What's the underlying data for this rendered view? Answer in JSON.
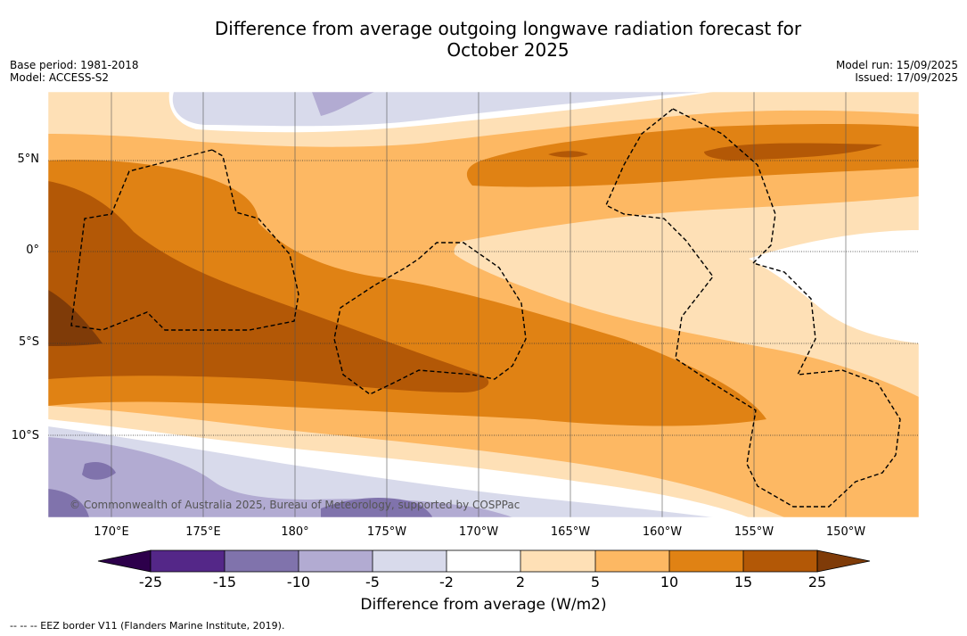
{
  "title_line1": "Difference from average outgoing longwave radiation forecast for",
  "title_line2": "October 2025",
  "meta_left": {
    "base_period": "Base period: 1981-2018",
    "model": "Model: ACCESS-S2"
  },
  "meta_right": {
    "model_run": "Model run: 15/09/2025",
    "issued": "Issued: 17/09/2025"
  },
  "latitude_labels": [
    "5°N",
    "0°",
    "5°S",
    "10°S"
  ],
  "longitude_labels": [
    "170°E",
    "175°E",
    "180°",
    "175°W",
    "170°W",
    "165°W",
    "160°W",
    "155°W",
    "150°W"
  ],
  "copyright": "© Commonwealth of Australia 2025, Bureau of Meteorology, supported by COSPPac",
  "colorbar": {
    "ticks": [
      "-25",
      "-15",
      "-10",
      "-5",
      "-2",
      "2",
      "5",
      "10",
      "15",
      "25"
    ],
    "colors": [
      "#542788",
      "#8073ac",
      "#b2abd2",
      "#d8daeb",
      "#ffffff",
      "#fee0b6",
      "#fdb863",
      "#e08214",
      "#b35806"
    ],
    "under_color": "#2d004b",
    "over_color": "#7f3b08",
    "label": "Difference from average (W/m2)"
  },
  "footnote": "-- -- -- EEZ border V11 (Flanders Marine Institute, 2019)."
}
